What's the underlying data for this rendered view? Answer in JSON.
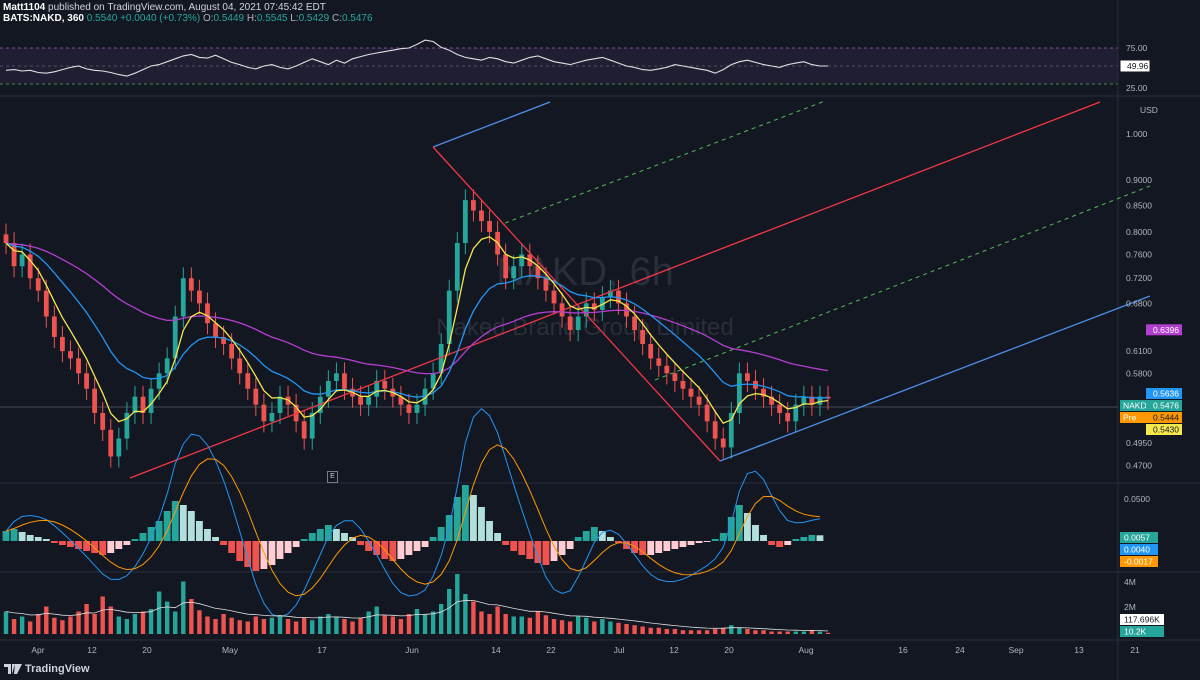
{
  "header": {
    "author": "Matt1104",
    "published": "published on TradingView.com, August 04, 2021 07:45:42 EDT",
    "symbol": "BATS:NAKD, 360",
    "o_label": "O:",
    "o_val": "0.5449",
    "h_label": "H:",
    "h_val": "0.5545",
    "l_label": "L:",
    "l_val": "0.5429",
    "c_label": "C:",
    "c_val": "0.5476",
    "last_price": "0.5540",
    "change": "+0.0040 (+0.73%)"
  },
  "watermark": {
    "symbol": "NAKD, 6h",
    "name": "Naked Brand Group Limited"
  },
  "logo": "TradingView",
  "event_marker": "E",
  "colors": {
    "bg": "#131722",
    "up": "#26a69a",
    "down": "#ef5350",
    "ema_yellow": "#f5e84d",
    "ema_blue": "#2196f3",
    "ema_purple": "#b33fd0",
    "red_line": "#f23645",
    "blue_line": "#4d90e8",
    "green_dash": "#4caf50"
  },
  "chart_data": [
    {
      "type": "line",
      "title": "RSI",
      "y_ticks": [
        "75.00",
        "25.00"
      ],
      "current_value": "49.96",
      "ylim": [
        0,
        100
      ],
      "values": [
        44,
        45,
        43,
        44,
        41,
        40,
        42,
        45,
        48,
        50,
        46,
        44,
        43,
        41,
        38,
        36,
        40,
        45,
        50,
        52,
        56,
        60,
        64,
        66,
        62,
        61,
        65,
        60,
        55,
        52,
        48,
        46,
        50,
        52,
        48,
        46,
        50,
        55,
        60,
        56,
        52,
        58,
        54,
        60,
        63,
        66,
        68,
        70,
        72,
        74,
        75,
        80,
        86,
        84,
        76,
        72,
        66,
        62,
        60,
        58,
        62,
        60,
        56,
        54,
        58,
        62,
        64,
        60,
        56,
        54,
        52,
        55,
        58,
        60,
        62,
        58,
        54,
        50,
        48,
        45,
        44,
        46,
        48,
        52,
        50,
        48,
        46,
        44,
        40,
        45,
        52,
        56,
        58,
        55,
        52,
        50,
        48,
        52,
        54,
        56,
        52,
        50,
        49.96
      ]
    },
    {
      "type": "candlestick",
      "title": "NAKD, 6h",
      "y_ticks": [
        "1.000",
        "0.9000",
        "0.8500",
        "0.8000",
        "0.7600",
        "0.7200",
        "0.6800",
        "0.6100",
        "0.5800",
        "0.4950",
        "0.4700"
      ],
      "y_unit": "USD",
      "ylim": [
        0.455,
        1.08
      ],
      "x_ticks": [
        "Apr",
        "12",
        "20",
        "May",
        "17",
        "Jun",
        "14",
        "22",
        "Jul",
        "12",
        "20",
        "Aug",
        "16",
        "24",
        "Sep",
        "13",
        "21"
      ],
      "price_badges": [
        {
          "label": "",
          "value": "0.6396",
          "color": "#b33fd0"
        },
        {
          "label": "",
          "value": "0.5636",
          "color": "#2196f3"
        },
        {
          "label": "NAKD",
          "value": "0.5476",
          "color": "#26a69a"
        },
        {
          "label": "Pre",
          "value": "0.5444",
          "color": "#ff9800"
        },
        {
          "label": "",
          "value": "0.5430",
          "color": "#f5e84d"
        }
      ],
      "closes": [
        0.78,
        0.74,
        0.76,
        0.72,
        0.7,
        0.66,
        0.63,
        0.61,
        0.6,
        0.58,
        0.56,
        0.53,
        0.51,
        0.48,
        0.5,
        0.53,
        0.55,
        0.53,
        0.56,
        0.58,
        0.6,
        0.66,
        0.72,
        0.7,
        0.68,
        0.65,
        0.63,
        0.62,
        0.6,
        0.58,
        0.56,
        0.54,
        0.52,
        0.53,
        0.55,
        0.54,
        0.52,
        0.5,
        0.53,
        0.55,
        0.57,
        0.58,
        0.56,
        0.55,
        0.54,
        0.55,
        0.57,
        0.56,
        0.55,
        0.54,
        0.53,
        0.54,
        0.56,
        0.58,
        0.62,
        0.7,
        0.78,
        0.86,
        0.84,
        0.82,
        0.8,
        0.76,
        0.72,
        0.74,
        0.76,
        0.74,
        0.72,
        0.7,
        0.68,
        0.66,
        0.64,
        0.66,
        0.68,
        0.67,
        0.69,
        0.7,
        0.68,
        0.66,
        0.64,
        0.62,
        0.6,
        0.59,
        0.58,
        0.57,
        0.56,
        0.55,
        0.54,
        0.52,
        0.5,
        0.49,
        0.53,
        0.58,
        0.57,
        0.56,
        0.55,
        0.54,
        0.53,
        0.52,
        0.54,
        0.55,
        0.54,
        0.55,
        0.5476
      ]
    },
    {
      "type": "bar",
      "title": "MACD",
      "y_ticks": [
        "0.0500"
      ],
      "values_badges": [
        "0.0057",
        "0.0040",
        "-0.0017"
      ],
      "histogram": [
        0.01,
        0.012,
        0.009,
        0.006,
        0.004,
        0.002,
        -0.002,
        -0.004,
        -0.006,
        -0.008,
        -0.01,
        -0.012,
        -0.014,
        -0.012,
        -0.008,
        -0.004,
        0.002,
        0.008,
        0.014,
        0.02,
        0.03,
        0.04,
        0.036,
        0.03,
        0.02,
        0.012,
        0.004,
        -0.004,
        -0.012,
        -0.02,
        -0.026,
        -0.03,
        -0.028,
        -0.024,
        -0.018,
        -0.012,
        -0.006,
        0.002,
        0.008,
        0.012,
        0.016,
        0.012,
        0.008,
        0.004,
        -0.004,
        -0.01,
        -0.014,
        -0.018,
        -0.02,
        -0.018,
        -0.014,
        -0.01,
        -0.006,
        0.004,
        0.014,
        0.026,
        0.044,
        0.056,
        0.046,
        0.034,
        0.02,
        0.008,
        -0.004,
        -0.01,
        -0.014,
        -0.018,
        -0.022,
        -0.024,
        -0.02,
        -0.014,
        -0.008,
        0.004,
        0.01,
        0.014,
        0.01,
        0.004,
        -0.002,
        -0.008,
        -0.012,
        -0.014,
        -0.014,
        -0.012,
        -0.01,
        -0.008,
        -0.006,
        -0.004,
        -0.002,
        -0.001,
        0.002,
        0.008,
        0.024,
        0.036,
        0.028,
        0.016,
        0.006,
        -0.004,
        -0.006,
        -0.004,
        0.002,
        0.004,
        0.006,
        0.0057
      ]
    },
    {
      "type": "bar",
      "title": "Volume",
      "y_ticks": [
        "4M",
        "2M"
      ],
      "values_badges": [
        "117.696K",
        "10.2K"
      ],
      "volume": [
        1.8,
        1.2,
        1.4,
        1.0,
        1.6,
        2.2,
        1.3,
        1.1,
        1.4,
        1.8,
        2.4,
        1.6,
        3.0,
        2.2,
        1.4,
        1.2,
        1.6,
        1.8,
        2.0,
        3.4,
        2.6,
        1.8,
        4.2,
        2.8,
        1.9,
        1.4,
        1.2,
        1.6,
        1.3,
        1.1,
        1.0,
        1.4,
        1.2,
        1.3,
        1.5,
        1.2,
        1.0,
        1.3,
        1.1,
        1.4,
        1.6,
        1.4,
        1.2,
        1.0,
        1.3,
        1.8,
        2.2,
        1.5,
        1.4,
        1.2,
        1.6,
        2.0,
        1.6,
        1.8,
        2.4,
        3.6,
        4.8,
        3.2,
        2.6,
        1.8,
        1.6,
        2.2,
        1.6,
        1.4,
        1.4,
        1.3,
        1.8,
        1.5,
        1.2,
        1.1,
        1.0,
        1.4,
        1.3,
        1.0,
        1.2,
        1.0,
        0.9,
        0.8,
        0.7,
        0.6,
        0.5,
        0.5,
        0.4,
        0.4,
        0.3,
        0.3,
        0.3,
        0.3,
        0.4,
        0.5,
        0.7,
        0.5,
        0.4,
        0.3,
        0.3,
        0.2,
        0.2,
        0.2,
        0.2,
        0.2,
        0.3,
        0.2,
        0.1
      ]
    }
  ]
}
